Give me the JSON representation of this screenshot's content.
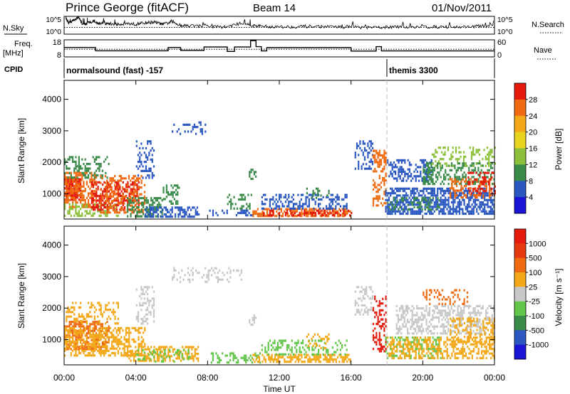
{
  "header": {
    "title": "Prince George (fitACF)",
    "beam": "Beam 14",
    "date": "01/Nov/2011"
  },
  "noise_panel": {
    "left_label": "N.Sky",
    "right_label": "N.Search",
    "left_ticks": [
      "10^5",
      "10^0"
    ],
    "right_ticks": [
      "10^5",
      "10^0"
    ],
    "ylim": [
      0,
      5
    ],
    "sky_x_hours": [
      0.1,
      0.25,
      0.5,
      0.8,
      1.0,
      1.2,
      1.5,
      2.0,
      2.5,
      3.0,
      3.5,
      4.0,
      4.5,
      5.0,
      5.5,
      6.0,
      6.5,
      7.0,
      8.0,
      9.0,
      10.0,
      10.5,
      11.0,
      12.0,
      13.0,
      14.0,
      15.0,
      16.0,
      17.0,
      18.0,
      19.0,
      20.0,
      21.0,
      22.0,
      23.0,
      24.0
    ],
    "sky_y_log": [
      4.6,
      3.2,
      3.8,
      4.8,
      3.0,
      2.8,
      3.5,
      3.0,
      2.9,
      2.8,
      3.0,
      2.8,
      3.2,
      3.4,
      2.8,
      3.4,
      2.5,
      2.4,
      2.2,
      2.0,
      3.2,
      2.4,
      2.2,
      2.0,
      2.1,
      2.2,
      2.0,
      2.1,
      1.8,
      2.0,
      2.0,
      2.1,
      2.0,
      2.0,
      2.2,
      2.4
    ],
    "search_level_log": 1.9
  },
  "freq_panel": {
    "left_label": "Freq.",
    "left_unit": "[MHz]",
    "right_label": "Nave",
    "left_ticks": [
      "18",
      "8"
    ],
    "right_ticks": [
      "60",
      "0"
    ],
    "freq_lim": [
      8,
      18
    ],
    "nave_lim": [
      0,
      60
    ],
    "freq_x_hours": [
      0,
      1.75,
      1.75,
      5.8,
      5.8,
      6.5,
      6.5,
      7.8,
      7.8,
      9.1,
      9.1,
      9.5,
      9.5,
      10.4,
      10.4,
      10.7,
      10.7,
      11.0,
      11.0,
      11.3,
      11.3,
      16.0,
      16.0,
      17.4,
      17.4,
      17.7,
      17.7,
      24.0
    ],
    "freq_y_mhz": [
      13.5,
      13.5,
      11.6,
      11.6,
      13.5,
      13.5,
      11.8,
      11.8,
      13.8,
      13.8,
      11.2,
      11.2,
      13.8,
      13.8,
      17.5,
      17.5,
      14.0,
      14.0,
      11.5,
      11.5,
      13.4,
      13.4,
      11.4,
      11.4,
      14.0,
      14.0,
      11.5,
      11.5
    ],
    "nave_level": 27
  },
  "cpid": {
    "label": "CPID",
    "segments": [
      {
        "name": "normalsound (fast) -157",
        "start_hour": 0.0
      },
      {
        "name": "themis 3300",
        "start_hour": 18.0
      }
    ]
  },
  "power_panel": {
    "ylabel": "Slant Range [km]",
    "cbar_label": "Power [dB]",
    "cbar_ticks": [
      "28",
      "24",
      "20",
      "16",
      "12",
      "8",
      "4"
    ],
    "cbar_colors": [
      "#1a14d6",
      "#2a57c0",
      "#3a8a4a",
      "#8cbf3a",
      "#e8d31e",
      "#f2a818",
      "#ef6a10",
      "#e41a0c"
    ],
    "blobs": [
      {
        "x0": 0.0,
        "x1": 0.9,
        "y0": 800,
        "y1": 1500,
        "color": "#e41a0c",
        "density": 0.85
      },
      {
        "x0": 0.0,
        "x1": 1.8,
        "y0": 600,
        "y1": 1700,
        "color": "#ef6a10",
        "density": 0.55
      },
      {
        "x0": 0.0,
        "x1": 2.5,
        "y0": 1500,
        "y1": 2200,
        "color": "#3a8a4a",
        "density": 0.35
      },
      {
        "x0": 0.0,
        "x1": 3.0,
        "y0": 300,
        "y1": 700,
        "color": "#8cbf3a",
        "density": 0.4
      },
      {
        "x0": 1.5,
        "x1": 4.2,
        "y0": 500,
        "y1": 1400,
        "color": "#e41a0c",
        "density": 0.5
      },
      {
        "x0": 2.0,
        "x1": 4.5,
        "y0": 400,
        "y1": 1600,
        "color": "#ef6a10",
        "density": 0.4
      },
      {
        "x0": 3.5,
        "x1": 5.5,
        "y0": 300,
        "y1": 900,
        "color": "#3a8a4a",
        "density": 0.55
      },
      {
        "x0": 4.5,
        "x1": 7.5,
        "y0": 300,
        "y1": 600,
        "color": "#2a57c0",
        "density": 0.6
      },
      {
        "x0": 4.0,
        "x1": 5.0,
        "y0": 1500,
        "y1": 2700,
        "color": "#2a57c0",
        "density": 0.3
      },
      {
        "x0": 5.5,
        "x1": 6.5,
        "y0": 700,
        "y1": 1300,
        "color": "#3a8a4a",
        "density": 0.35
      },
      {
        "x0": 6.0,
        "x1": 8.0,
        "y0": 2900,
        "y1": 3300,
        "color": "#2a57c0",
        "density": 0.2
      },
      {
        "x0": 8.0,
        "x1": 10.5,
        "y0": 300,
        "y1": 500,
        "color": "#2a57c0",
        "density": 0.35
      },
      {
        "x0": 9.0,
        "x1": 10.5,
        "y0": 500,
        "y1": 1000,
        "color": "#3a8a4a",
        "density": 0.3
      },
      {
        "x0": 10.3,
        "x1": 10.7,
        "y0": 1500,
        "y1": 1800,
        "color": "#3a8a4a",
        "density": 0.5
      },
      {
        "x0": 10.5,
        "x1": 16.0,
        "y0": 300,
        "y1": 550,
        "color": "#ef6a10",
        "density": 0.6
      },
      {
        "x0": 11.0,
        "x1": 16.0,
        "y0": 300,
        "y1": 500,
        "color": "#e41a0c",
        "density": 0.35
      },
      {
        "x0": 11.0,
        "x1": 15.8,
        "y0": 500,
        "y1": 1000,
        "color": "#2a57c0",
        "density": 0.4
      },
      {
        "x0": 13.5,
        "x1": 14.8,
        "y0": 800,
        "y1": 1200,
        "color": "#3a8a4a",
        "density": 0.3
      },
      {
        "x0": 16.2,
        "x1": 17.2,
        "y0": 1800,
        "y1": 2700,
        "color": "#2a57c0",
        "density": 0.35
      },
      {
        "x0": 17.2,
        "x1": 17.9,
        "y0": 600,
        "y1": 2400,
        "color": "#ef6a10",
        "density": 0.45
      },
      {
        "x0": 17.9,
        "x1": 24.0,
        "y0": 400,
        "y1": 1200,
        "color": "#2a57c0",
        "density": 0.6
      },
      {
        "x0": 18.0,
        "x1": 21.0,
        "y0": 500,
        "y1": 900,
        "color": "#3a8a4a",
        "density": 0.35
      },
      {
        "x0": 18.0,
        "x1": 20.5,
        "y0": 1400,
        "y1": 2100,
        "color": "#2a57c0",
        "density": 0.45
      },
      {
        "x0": 20.0,
        "x1": 24.0,
        "y0": 1300,
        "y1": 2000,
        "color": "#3a8a4a",
        "density": 0.45
      },
      {
        "x0": 21.5,
        "x1": 24.0,
        "y0": 900,
        "y1": 1500,
        "color": "#ef6a10",
        "density": 0.4
      },
      {
        "x0": 22.5,
        "x1": 24.0,
        "y0": 1000,
        "y1": 1700,
        "color": "#e41a0c",
        "density": 0.3
      },
      {
        "x0": 20.5,
        "x1": 24.0,
        "y0": 1900,
        "y1": 2500,
        "color": "#8cbf3a",
        "density": 0.25
      }
    ]
  },
  "velocity_panel": {
    "ylabel": "Slant Range [km]",
    "cbar_label": "Velocity [m s⁻¹]",
    "cbar_ticks": [
      "1000",
      "500",
      "100",
      "25",
      "-25",
      "-100",
      "-500",
      "-1000"
    ],
    "cbar_colors": [
      "#1a14d6",
      "#2a57c0",
      "#3a8a4a",
      "#62c64a",
      "#c8c8c8",
      "#f2a818",
      "#ef6a10",
      "#e83a10",
      "#e41a0c"
    ],
    "blobs": [
      {
        "x0": 0.0,
        "x1": 2.5,
        "y0": 700,
        "y1": 1600,
        "color": "#ef6a10",
        "density": 0.6
      },
      {
        "x0": 0.0,
        "x1": 4.5,
        "y0": 500,
        "y1": 1400,
        "color": "#f2a818",
        "density": 0.55
      },
      {
        "x0": 0.0,
        "x1": 3.0,
        "y0": 1500,
        "y1": 2200,
        "color": "#f2a818",
        "density": 0.3
      },
      {
        "x0": 3.5,
        "x1": 7.5,
        "y0": 300,
        "y1": 800,
        "color": "#f2a818",
        "density": 0.5
      },
      {
        "x0": 4.0,
        "x1": 7.0,
        "y0": 300,
        "y1": 700,
        "color": "#62c64a",
        "density": 0.25
      },
      {
        "x0": 6.0,
        "x1": 10.0,
        "y0": 2800,
        "y1": 3300,
        "color": "#c8c8c8",
        "density": 0.2
      },
      {
        "x0": 4.0,
        "x1": 5.0,
        "y0": 1500,
        "y1": 2700,
        "color": "#c8c8c8",
        "density": 0.3
      },
      {
        "x0": 8.0,
        "x1": 11.0,
        "y0": 300,
        "y1": 600,
        "color": "#62c64a",
        "density": 0.35
      },
      {
        "x0": 10.3,
        "x1": 10.7,
        "y0": 1500,
        "y1": 1800,
        "color": "#c8c8c8",
        "density": 0.5
      },
      {
        "x0": 10.5,
        "x1": 16.0,
        "y0": 300,
        "y1": 550,
        "color": "#f2a818",
        "density": 0.55
      },
      {
        "x0": 11.0,
        "x1": 15.8,
        "y0": 500,
        "y1": 1000,
        "color": "#62c64a",
        "density": 0.3
      },
      {
        "x0": 13.5,
        "x1": 14.8,
        "y0": 700,
        "y1": 1200,
        "color": "#f2a818",
        "density": 0.3
      },
      {
        "x0": 16.2,
        "x1": 17.2,
        "y0": 1800,
        "y1": 2700,
        "color": "#c8c8c8",
        "density": 0.35
      },
      {
        "x0": 17.2,
        "x1": 17.9,
        "y0": 600,
        "y1": 2400,
        "color": "#e41a0c",
        "density": 0.35
      },
      {
        "x0": 17.9,
        "x1": 21.0,
        "y0": 400,
        "y1": 1100,
        "color": "#62c64a",
        "density": 0.4
      },
      {
        "x0": 18.0,
        "x1": 24.0,
        "y0": 400,
        "y1": 1100,
        "color": "#f2a818",
        "density": 0.45
      },
      {
        "x0": 18.5,
        "x1": 24.0,
        "y0": 1200,
        "y1": 2100,
        "color": "#c8c8c8",
        "density": 0.5
      },
      {
        "x0": 20.0,
        "x1": 22.5,
        "y0": 2100,
        "y1": 2600,
        "color": "#ef6a10",
        "density": 0.3
      },
      {
        "x0": 21.5,
        "x1": 24.0,
        "y0": 900,
        "y1": 1700,
        "color": "#f2a818",
        "density": 0.35
      }
    ]
  },
  "xaxis": {
    "label": "Time UT",
    "ticks": [
      "00:00",
      "04:00",
      "08:00",
      "12:00",
      "16:00",
      "20:00",
      "00:00"
    ]
  },
  "chart_data": {
    "type": "heatmap",
    "title": "Prince George (fitACF)",
    "xlabel": "Time UT",
    "ylabel": "Slant Range [km]",
    "x_range_hours": [
      0,
      24
    ],
    "y_range_km": [
      200,
      4600
    ],
    "y_ticks": [
      1000,
      2000,
      3000,
      4000
    ],
    "series": [
      {
        "name": "Power [dB]",
        "color_scale": [
          4,
          28
        ]
      },
      {
        "name": "Velocity [m s⁻¹]",
        "color_scale": [
          -1000,
          1000
        ]
      }
    ]
  }
}
